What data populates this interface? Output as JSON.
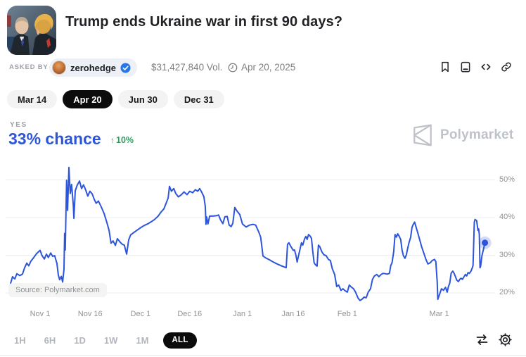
{
  "header": {
    "title": "Trump ends Ukraine war in first 90 days?",
    "asked_by_label": "ASKED BY",
    "asker_name": "zerohedge",
    "volume": "$31,427,840 Vol.",
    "date": "Apr 20, 2025"
  },
  "icons": [
    "bookmark-icon",
    "article-icon",
    "embed-code-icon",
    "link-icon",
    "clock-icon",
    "verified-badge-icon",
    "compare-arrows-icon",
    "settings-gear-icon",
    "polymarket-logo"
  ],
  "date_tabs": [
    {
      "label": "Mar 14",
      "active": false
    },
    {
      "label": "Apr 20",
      "active": true
    },
    {
      "label": "Jun 30",
      "active": false
    },
    {
      "label": "Dec 31",
      "active": false
    }
  ],
  "outcome": {
    "label": "YES",
    "chance": "33% chance",
    "change_arrow": "↑",
    "change_value": "10%",
    "direction": "up"
  },
  "watermark_text": "Polymarket",
  "source_badge": "Source: Polymarket.com",
  "ranges": [
    {
      "label": "1H",
      "active": false
    },
    {
      "label": "6H",
      "active": false
    },
    {
      "label": "1D",
      "active": false
    },
    {
      "label": "1W",
      "active": false
    },
    {
      "label": "1M",
      "active": false
    },
    {
      "label": "ALL",
      "active": true
    }
  ],
  "colors": {
    "accent_blue": "#2d55dc",
    "positive_green": "#36985f",
    "active_pill_bg": "#0c0c0c",
    "pill_bg": "#f3f3f4",
    "verified_blue": "#2676e8",
    "gridline": "#ededee",
    "axis_text": "#8f9398",
    "watermark": "#bfc3c9"
  },
  "chart_data": {
    "type": "line",
    "series_name": "YES price",
    "title": "",
    "xlabel": "",
    "ylabel": "",
    "x_unit": "days (day 0 = chart start, ~Oct 23; ticks mark calendar dates)",
    "x_range": [
      0,
      143.5
    ],
    "y_range_pct": [
      16.5,
      54.5
    ],
    "grid": "horizontal",
    "legend_position": "none",
    "line_color": "#2d55dc",
    "end_dot_value_pct": 33,
    "x_ticks": [
      {
        "day": 8.9,
        "label": "Nov 1"
      },
      {
        "day": 24.0,
        "label": "Nov 16"
      },
      {
        "day": 39.2,
        "label": "Dec 1"
      },
      {
        "day": 54.0,
        "label": "Dec 16"
      },
      {
        "day": 69.9,
        "label": "Jan 1"
      },
      {
        "day": 85.2,
        "label": "Jan 16"
      },
      {
        "day": 101.5,
        "label": "Feb 1"
      },
      {
        "day": 129.2,
        "label": "Mar 1"
      }
    ],
    "y_ticks": [
      {
        "value": 50,
        "label": "50%"
      },
      {
        "value": 40,
        "label": "40%"
      },
      {
        "value": 30,
        "label": "30%"
      },
      {
        "value": 20,
        "label": "20%"
      }
    ],
    "points": [
      [
        0,
        22.5
      ],
      [
        0.6,
        24.3
      ],
      [
        1.3,
        23.7
      ],
      [
        1.9,
        25.1
      ],
      [
        2.8,
        24.6
      ],
      [
        3.6,
        25.0
      ],
      [
        4.2,
        26.6
      ],
      [
        4.9,
        27.9
      ],
      [
        5.5,
        27.2
      ],
      [
        6.1,
        28.4
      ],
      [
        7,
        29.4
      ],
      [
        7.8,
        30.4
      ],
      [
        8.9,
        31.3
      ],
      [
        9.5,
        29.9
      ],
      [
        10.2,
        29.0
      ],
      [
        10.8,
        30.3
      ],
      [
        11.4,
        29.4
      ],
      [
        12.1,
        30.6
      ],
      [
        12.7,
        29.7
      ],
      [
        13.3,
        29.9
      ],
      [
        14,
        27.8
      ],
      [
        14.4,
        24.8
      ],
      [
        14.8,
        23.5
      ],
      [
        15.3,
        24.4
      ],
      [
        15.7,
        22.9
      ],
      [
        16.1,
        26.3
      ],
      [
        16.3,
        35.8
      ],
      [
        16.5,
        31.4
      ],
      [
        16.9,
        49.9
      ],
      [
        17.2,
        41.9
      ],
      [
        17.6,
        53.3
      ],
      [
        18,
        46.4
      ],
      [
        18.4,
        48.8
      ],
      [
        18.9,
        43.4
      ],
      [
        19.1,
        39.8
      ],
      [
        19.5,
        47.1
      ],
      [
        20.1,
        48.6
      ],
      [
        20.8,
        49.7
      ],
      [
        21.4,
        47.7
      ],
      [
        22,
        48.7
      ],
      [
        22.7,
        47.2
      ],
      [
        23.3,
        45.7
      ],
      [
        23.9,
        47.0
      ],
      [
        24.6,
        46.3
      ],
      [
        25.2,
        44.9
      ],
      [
        25.8,
        43.8
      ],
      [
        26.5,
        44.4
      ],
      [
        27.3,
        42.9
      ],
      [
        28.2,
        41.1
      ],
      [
        29,
        38.8
      ],
      [
        29.7,
        36.6
      ],
      [
        30.3,
        33.2
      ],
      [
        30.9,
        33.8
      ],
      [
        31.6,
        32.6
      ],
      [
        32.2,
        34.4
      ],
      [
        33.1,
        33.4
      ],
      [
        33.7,
        32.9
      ],
      [
        34.3,
        32.7
      ],
      [
        35,
        30.3
      ],
      [
        35.6,
        34.1
      ],
      [
        36.2,
        35.4
      ],
      [
        37.1,
        36.0
      ],
      [
        37.9,
        36.5
      ],
      [
        39.2,
        37.3
      ],
      [
        40.3,
        37.9
      ],
      [
        41.3,
        38.3
      ],
      [
        42.4,
        38.9
      ],
      [
        43.4,
        39.5
      ],
      [
        44.5,
        40.4
      ],
      [
        45.3,
        41.4
      ],
      [
        46.2,
        42.3
      ],
      [
        46.8,
        43.6
      ],
      [
        47.5,
        45.2
      ],
      [
        47.9,
        48.3
      ],
      [
        48.5,
        47.0
      ],
      [
        49.2,
        47.7
      ],
      [
        49.8,
        46.4
      ],
      [
        50.6,
        45.5
      ],
      [
        51.5,
        46.1
      ],
      [
        52.3,
        46.8
      ],
      [
        53.2,
        46.1
      ],
      [
        54,
        47.0
      ],
      [
        54.9,
        46.6
      ],
      [
        55.7,
        47.4
      ],
      [
        56.4,
        47.0
      ],
      [
        57,
        47.7
      ],
      [
        57.6,
        46.8
      ],
      [
        58.3,
        45.5
      ],
      [
        58.7,
        43.0
      ],
      [
        58.9,
        38.2
      ],
      [
        59.1,
        40.2
      ],
      [
        59.5,
        38.3
      ],
      [
        60,
        40.4
      ],
      [
        61,
        40.4
      ],
      [
        62.1,
        40.5
      ],
      [
        62.7,
        40.7
      ],
      [
        63.3,
        39.4
      ],
      [
        64,
        38.4
      ],
      [
        64.6,
        40.2
      ],
      [
        65.3,
        40.3
      ],
      [
        65.9,
        38.0
      ],
      [
        66.5,
        37.6
      ],
      [
        67,
        38.5
      ],
      [
        67.6,
        42.7
      ],
      [
        68.2,
        41.8
      ],
      [
        69.1,
        40.8
      ],
      [
        69.9,
        38.3
      ],
      [
        71,
        37.5
      ],
      [
        72,
        38.0
      ],
      [
        73.1,
        38.2
      ],
      [
        73.9,
        38.0
      ],
      [
        74.8,
        36.2
      ],
      [
        75.4,
        34.8
      ],
      [
        76.1,
        29.8
      ],
      [
        76.9,
        29.3
      ],
      [
        78,
        28.8
      ],
      [
        79,
        28.3
      ],
      [
        80.1,
        27.8
      ],
      [
        81.1,
        27.4
      ],
      [
        82.2,
        27.0
      ],
      [
        83.1,
        26.7
      ],
      [
        83.5,
        32.9
      ],
      [
        83.9,
        33.3
      ],
      [
        84.5,
        32.3
      ],
      [
        85.2,
        31.3
      ],
      [
        85.6,
        31.4
      ],
      [
        86,
        30.1
      ],
      [
        86.4,
        28.2
      ],
      [
        86.9,
        30.3
      ],
      [
        87.3,
        31.8
      ],
      [
        87.7,
        33.3
      ],
      [
        88.1,
        32.7
      ],
      [
        88.6,
        34.3
      ],
      [
        89,
        35.0
      ],
      [
        89.4,
        34.2
      ],
      [
        89.8,
        35.5
      ],
      [
        90.3,
        35.1
      ],
      [
        90.7,
        34.5
      ],
      [
        91.1,
        31.0
      ],
      [
        91.5,
        28.0
      ],
      [
        91.9,
        27.5
      ],
      [
        92.4,
        27.1
      ],
      [
        92.8,
        32.7
      ],
      [
        93.2,
        32.3
      ],
      [
        93.9,
        30.8
      ],
      [
        94.5,
        30.1
      ],
      [
        95.1,
        29.9
      ],
      [
        95.8,
        28.9
      ],
      [
        96.4,
        28.6
      ],
      [
        97,
        26.4
      ],
      [
        97.7,
        24.9
      ],
      [
        98.3,
        21.7
      ],
      [
        98.9,
        22.1
      ],
      [
        99.6,
        20.7
      ],
      [
        100.2,
        21.1
      ],
      [
        100.8,
        20.6
      ],
      [
        101.5,
        20.2
      ],
      [
        102.1,
        22.1
      ],
      [
        102.8,
        21.5
      ],
      [
        103.4,
        21.1
      ],
      [
        104,
        20.2
      ],
      [
        104.7,
        18.7
      ],
      [
        105.3,
        18.0
      ],
      [
        105.9,
        18.3
      ],
      [
        106.6,
        18.9
      ],
      [
        107.2,
        18.7
      ],
      [
        107.8,
        20.2
      ],
      [
        108.5,
        21.1
      ],
      [
        109.1,
        23.6
      ],
      [
        109.7,
        24.5
      ],
      [
        110.4,
        24.9
      ],
      [
        111,
        24.3
      ],
      [
        111.7,
        24.9
      ],
      [
        112.3,
        25.2
      ],
      [
        112.9,
        25.1
      ],
      [
        113.6,
        25.0
      ],
      [
        114.2,
        25.2
      ],
      [
        114.6,
        27.3
      ],
      [
        115,
        28.0
      ],
      [
        115.5,
        31.0
      ],
      [
        115.9,
        35.5
      ],
      [
        116.3,
        34.8
      ],
      [
        116.7,
        35.7
      ],
      [
        117.1,
        35.1
      ],
      [
        117.6,
        34.2
      ],
      [
        118,
        31.4
      ],
      [
        118.4,
        29.9
      ],
      [
        118.9,
        29.2
      ],
      [
        119.3,
        30.1
      ],
      [
        119.7,
        31.8
      ],
      [
        120.1,
        33.3
      ],
      [
        120.6,
        34.8
      ],
      [
        121,
        37.4
      ],
      [
        121.4,
        38.2
      ],
      [
        121.8,
        38.8
      ],
      [
        122.2,
        37.6
      ],
      [
        122.7,
        36.1
      ],
      [
        123.3,
        34.2
      ],
      [
        123.9,
        32.3
      ],
      [
        124.6,
        30.5
      ],
      [
        125.2,
        28.9
      ],
      [
        125.8,
        27.7
      ],
      [
        126.5,
        28.0
      ],
      [
        127.1,
        28.6
      ],
      [
        127.8,
        28.9
      ],
      [
        128.2,
        28.3
      ],
      [
        128.6,
        23.0
      ],
      [
        128.8,
        18.3
      ],
      [
        129.2,
        19.3
      ],
      [
        129.9,
        21.1
      ],
      [
        130.5,
        20.7
      ],
      [
        131.1,
        21.5
      ],
      [
        131.6,
        20.2
      ],
      [
        132,
        21.7
      ],
      [
        132.4,
        22.6
      ],
      [
        132.8,
        25.2
      ],
      [
        133.3,
        25.8
      ],
      [
        133.7,
        25.2
      ],
      [
        134.1,
        24.3
      ],
      [
        134.5,
        23.4
      ],
      [
        135,
        23.0
      ],
      [
        135.4,
        23.6
      ],
      [
        135.8,
        23.9
      ],
      [
        136.2,
        23.6
      ],
      [
        136.7,
        24.3
      ],
      [
        137.1,
        24.9
      ],
      [
        137.5,
        24.5
      ],
      [
        137.9,
        25.4
      ],
      [
        138.3,
        25.2
      ],
      [
        138.8,
        25.8
      ],
      [
        139.2,
        26.7
      ],
      [
        139.4,
        27.3
      ],
      [
        139.8,
        38.8
      ],
      [
        140,
        39.5
      ],
      [
        140.5,
        39.2
      ],
      [
        140.9,
        36.6
      ],
      [
        141.1,
        37.0
      ],
      [
        141.3,
        35.5
      ],
      [
        141.5,
        26.7
      ],
      [
        141.7,
        27.1
      ],
      [
        142.1,
        29.9
      ],
      [
        142.6,
        31.8
      ],
      [
        143,
        33.3
      ]
    ]
  }
}
